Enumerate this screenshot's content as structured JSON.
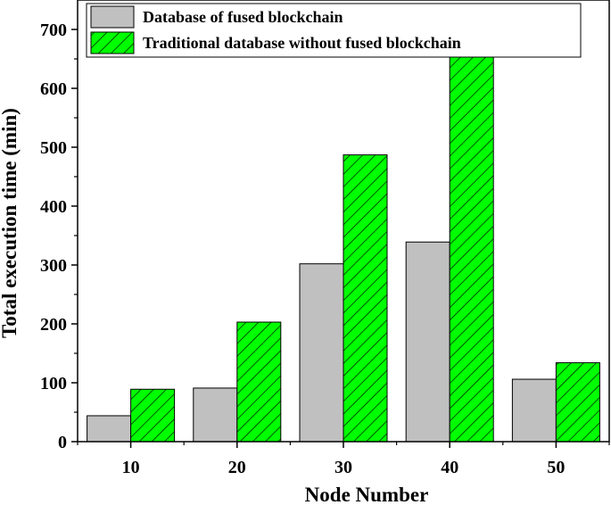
{
  "chart_data": {
    "type": "bar",
    "title": "",
    "xlabel": "Node Number",
    "ylabel": "Total execution time (min)",
    "categories": [
      "10",
      "20",
      "30",
      "40",
      "50"
    ],
    "ylim": [
      0,
      750
    ],
    "yticks": [
      0,
      100,
      200,
      300,
      400,
      500,
      600,
      700
    ],
    "grid": false,
    "legend_position": "top",
    "series": [
      {
        "name": "Database of fused blockchain",
        "values": [
          44,
          91,
          302,
          339,
          106
        ],
        "color": "#c0c0c0",
        "pattern": "solid"
      },
      {
        "name": "Traditional database without fused blockchain",
        "values": [
          89,
          203,
          487,
          663,
          134
        ],
        "color": "#00ff00",
        "pattern": "diagonal-hatch"
      }
    ]
  }
}
